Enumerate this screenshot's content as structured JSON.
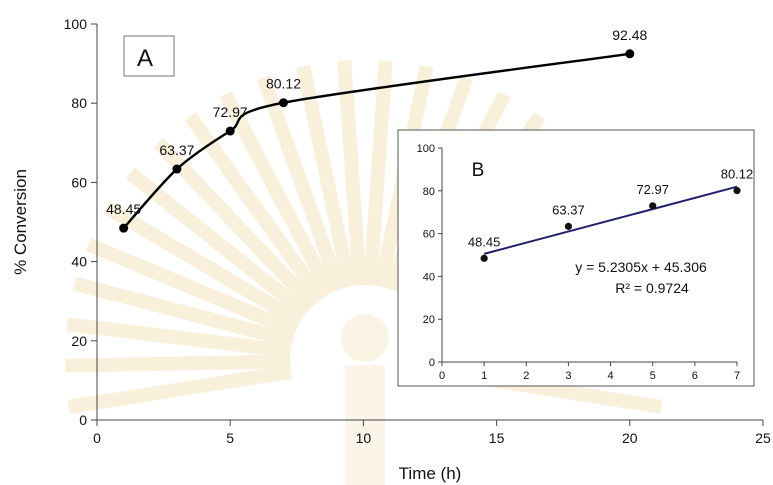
{
  "chart_data": [
    {
      "panel_label": "A",
      "type": "line",
      "xlabel": "Time (h)",
      "ylabel": "% Conversion",
      "xlim": [
        0,
        25
      ],
      "ylim": [
        0,
        100
      ],
      "x_ticks": [
        "0",
        "5",
        "10",
        "15",
        "20",
        "25"
      ],
      "y_ticks": [
        "0",
        "20",
        "40",
        "60",
        "80",
        "100"
      ],
      "grid": false,
      "x": [
        1,
        3,
        5,
        7,
        20
      ],
      "values": [
        48.45,
        63.37,
        72.97,
        80.12,
        92.48
      ],
      "data_labels": [
        "48.45",
        "63.37",
        "72.97",
        "80.12",
        "92.48"
      ],
      "line_style": "smoothed",
      "color": "#000000"
    },
    {
      "panel_label": "B",
      "type": "scatter",
      "xlim": [
        0,
        7
      ],
      "ylim": [
        0,
        100
      ],
      "x_ticks": [
        "0",
        "1",
        "2",
        "3",
        "4",
        "5",
        "6",
        "7"
      ],
      "y_ticks": [
        "0",
        "20",
        "40",
        "60",
        "80",
        "100"
      ],
      "grid": false,
      "x": [
        1,
        3,
        5,
        7
      ],
      "values": [
        48.45,
        63.37,
        72.97,
        80.12
      ],
      "data_labels": [
        "48.45",
        "63.37",
        "72.97",
        "80.12"
      ],
      "trendline": {
        "slope": 5.2305,
        "intercept": 45.306,
        "equation": "y = 5.2305x + 45.306",
        "r2": "R² = 0.9724",
        "color": "#1f1f6e"
      }
    }
  ]
}
